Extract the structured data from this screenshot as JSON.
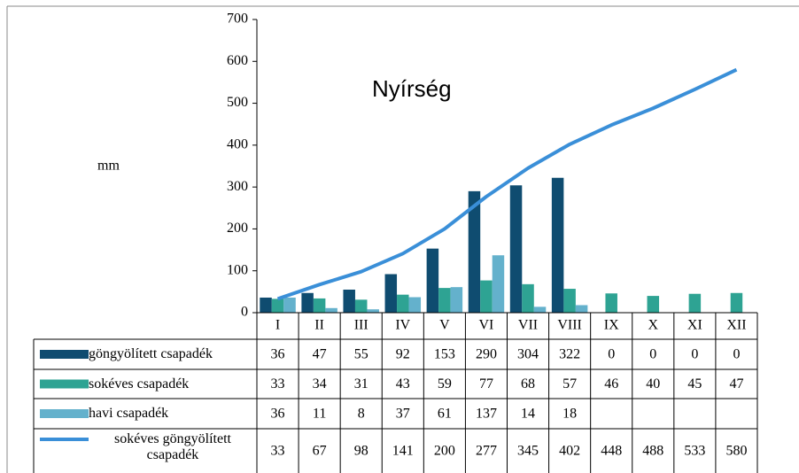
{
  "chart_data": {
    "type": "bar",
    "title": "Nyírség",
    "y_label": "mm",
    "categories": [
      "I",
      "II",
      "III",
      "IV",
      "V",
      "VI",
      "VII",
      "VIII",
      "IX",
      "X",
      "XI",
      "XII"
    ],
    "series": [
      {
        "name": "göngyölített csapadék",
        "type": "bar",
        "color": "#0f4c70",
        "values": [
          36,
          47,
          55,
          92,
          153,
          290,
          304,
          322,
          0,
          0,
          0,
          0
        ]
      },
      {
        "name": "sokéves csapadék",
        "type": "bar",
        "color": "#2ea393",
        "values": [
          33,
          34,
          31,
          43,
          59,
          77,
          68,
          57,
          46,
          40,
          45,
          47
        ]
      },
      {
        "name": "havi csapadék",
        "type": "bar",
        "color": "#64b1cc",
        "values": [
          36,
          11,
          8,
          37,
          61,
          137,
          14,
          18,
          null,
          null,
          null,
          null
        ]
      },
      {
        "name": "sokéves göngyölített csapadék",
        "type": "line",
        "color": "#3a8fd8",
        "values": [
          33,
          67,
          98,
          141,
          200,
          277,
          345,
          402,
          448,
          488,
          533,
          580
        ]
      }
    ],
    "ylim": [
      0,
      700
    ],
    "yticks": [
      0,
      100,
      200,
      300,
      400,
      500,
      600,
      700
    ],
    "grid": false
  }
}
